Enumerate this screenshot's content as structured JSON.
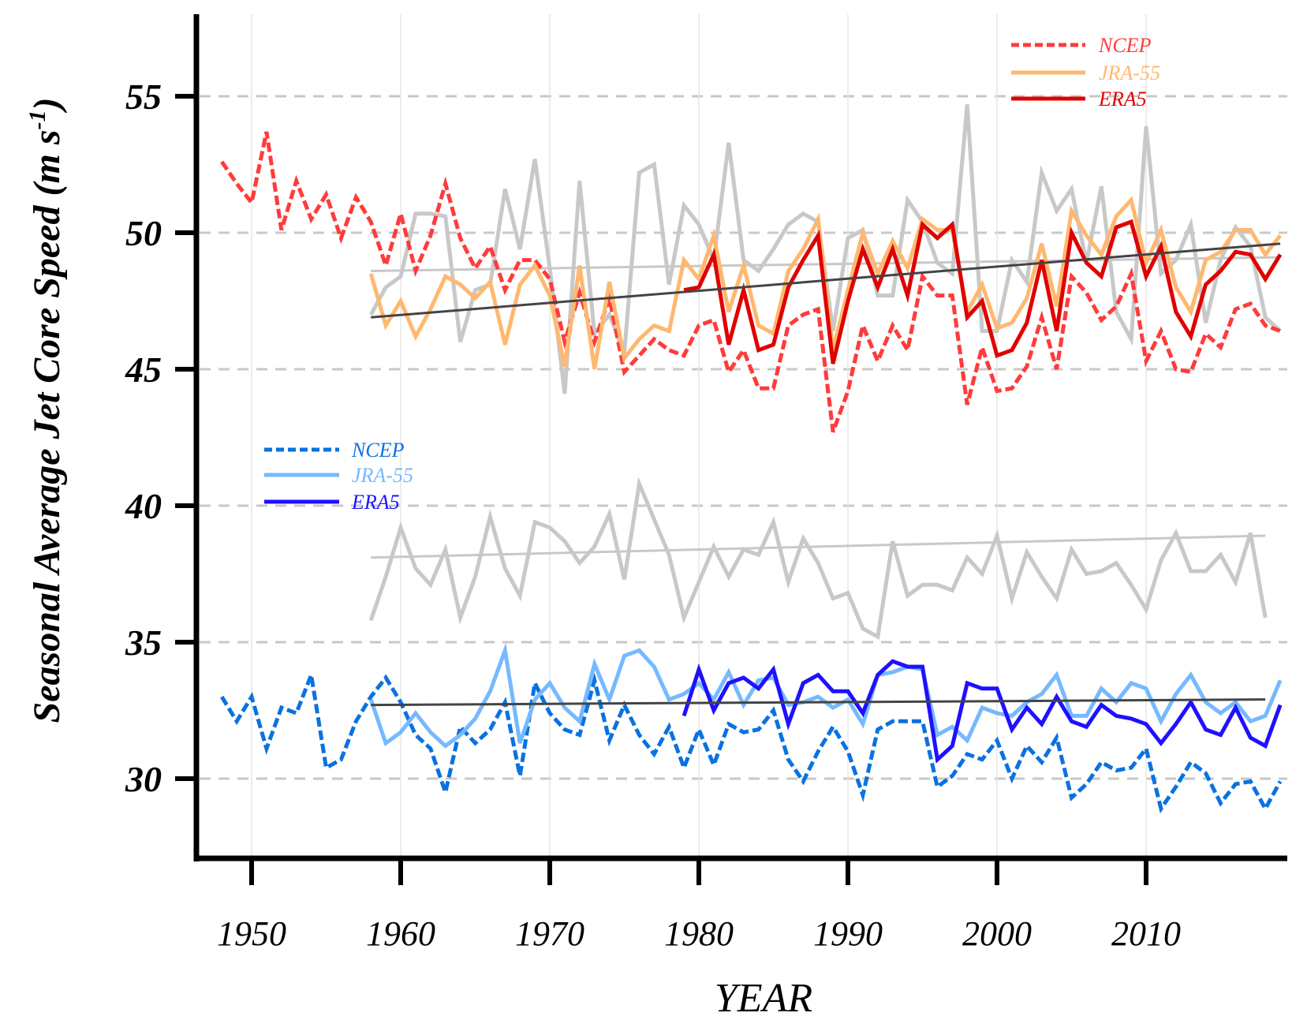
{
  "chart_data": {
    "type": "line",
    "title": "",
    "xlabel": "YEAR",
    "ylabel": "Seasonal Average Jet Core Speed (m s",
    "ylabel_superscript": "-1",
    "ylabel_close": ")",
    "xlim": [
      1946.3,
      2019.6
    ],
    "ylim": [
      27,
      58
    ],
    "x_ticks": [
      1950,
      1960,
      1970,
      1980,
      1990,
      2000,
      2010
    ],
    "x_tick_labels": [
      "1950",
      "1960",
      "1970",
      "1980",
      "1990",
      "2000",
      "2010"
    ],
    "y_ticks": [
      30,
      35,
      40,
      45,
      50,
      55
    ],
    "y_tick_labels": [
      "30",
      "35",
      "40",
      "45",
      "50",
      "55"
    ],
    "grid": "horizontal dashed at y ticks, faint vertical at x ticks",
    "legends": [
      {
        "placement": "top-right",
        "entries": [
          {
            "label": "NCEP",
            "color": "#ff3b3b",
            "style": "dashed"
          },
          {
            "label": "JRA-55",
            "color": "#ffb870",
            "style": "solid"
          },
          {
            "label": "ERA5",
            "color": "#e00000",
            "style": "solid"
          }
        ]
      },
      {
        "placement": "middle-left",
        "entries": [
          {
            "label": "NCEP",
            "color": "#0a72e0",
            "style": "dashed"
          },
          {
            "label": "JRA-55",
            "color": "#76b9ff",
            "style": "solid"
          },
          {
            "label": "ERA5",
            "color": "#1f10ff",
            "style": "solid"
          }
        ]
      }
    ],
    "series": [
      {
        "name": "Upper ensemble (grey)",
        "group": "upper",
        "color": "#c8c8c8",
        "style": "solid",
        "start_year": 1958,
        "values": [
          47.0,
          48.0,
          48.4,
          50.7,
          50.7,
          50.6,
          46.0,
          47.9,
          48.1,
          51.6,
          49.4,
          52.7,
          48.7,
          44.1,
          51.9,
          46.3,
          47.0,
          45.6,
          52.2,
          52.5,
          48.1,
          51.0,
          50.3,
          49.0,
          53.3,
          49.0,
          48.6,
          49.4,
          50.3,
          50.7,
          50.4,
          46.4,
          49.8,
          50.1,
          47.7,
          47.7,
          51.2,
          50.4,
          48.9,
          48.5,
          54.7,
          46.4,
          46.4,
          49.0,
          48.2,
          52.2,
          50.8,
          51.6,
          48.9,
          51.7,
          47.1,
          46.1,
          53.9,
          48.5,
          49.0,
          50.3,
          46.7,
          49.0,
          50.2,
          49.5,
          46.9,
          46.4
        ]
      },
      {
        "name": "Upper NCEP",
        "group": "upper",
        "color": "#ff3b3b",
        "style": "dashed",
        "start_year": 1948,
        "values": [
          52.6,
          51.8,
          51.1,
          53.7,
          50.1,
          51.9,
          50.5,
          51.4,
          49.8,
          51.3,
          50.4,
          48.8,
          50.7,
          48.6,
          49.9,
          51.8,
          49.8,
          48.7,
          49.5,
          47.9,
          49.0,
          49.0,
          48.3,
          46.0,
          47.8,
          46.0,
          47.6,
          44.9,
          45.5,
          46.1,
          45.7,
          45.5,
          46.6,
          46.8,
          44.9,
          45.7,
          44.3,
          44.3,
          46.6,
          47.0,
          47.2,
          42.7,
          44.2,
          46.6,
          45.3,
          46.6,
          45.7,
          48.4,
          47.7,
          47.7,
          43.7,
          45.8,
          44.2,
          44.3,
          45.1,
          46.9,
          45.0,
          48.4,
          47.8,
          46.8,
          47.3,
          48.5,
          45.3,
          46.4,
          45.0,
          44.9,
          46.3,
          45.8,
          47.2,
          47.4,
          46.6,
          46.4
        ]
      },
      {
        "name": "Upper JRA-55",
        "group": "upper",
        "color": "#ffb870",
        "style": "solid",
        "start_year": 1958,
        "values": [
          48.5,
          46.6,
          47.5,
          46.2,
          47.2,
          48.4,
          48.1,
          47.6,
          48.2,
          45.9,
          48.1,
          48.8,
          47.7,
          45.1,
          48.8,
          45.0,
          48.2,
          45.4,
          46.1,
          46.6,
          46.4,
          49.0,
          48.3,
          49.9,
          47.1,
          48.8,
          46.6,
          46.3,
          48.6,
          49.4,
          50.5,
          45.7,
          47.9,
          50.0,
          48.5,
          49.7,
          48.7,
          50.5,
          50.1,
          50.1,
          47.1,
          48.1,
          46.5,
          46.7,
          47.6,
          49.6,
          47.3,
          50.8,
          49.9,
          49.2,
          50.6,
          51.2,
          48.9,
          50.1,
          48.0,
          47.1,
          49.0,
          49.3,
          50.1,
          50.1,
          49.2,
          49.9
        ]
      },
      {
        "name": "Upper ERA5",
        "group": "upper",
        "color": "#e00000",
        "style": "solid",
        "start_year": 1979,
        "values": [
          47.9,
          48.0,
          49.2,
          45.9,
          47.9,
          45.7,
          45.9,
          48.0,
          49.0,
          49.9,
          45.2,
          47.5,
          49.4,
          48.0,
          49.4,
          47.7,
          50.3,
          49.8,
          50.3,
          46.9,
          47.5,
          45.5,
          45.7,
          46.7,
          49.0,
          46.4,
          50.0,
          48.9,
          48.4,
          50.2,
          50.4,
          48.4,
          49.5,
          47.1,
          46.2,
          48.1,
          48.6,
          49.3,
          49.2,
          48.3,
          49.2
        ]
      },
      {
        "name": "Middle ensemble (grey)",
        "group": "middle",
        "color": "#c8c8c8",
        "style": "solid",
        "start_year": 1958,
        "values": [
          35.8,
          37.4,
          39.2,
          37.7,
          37.1,
          38.4,
          35.9,
          37.4,
          39.6,
          37.7,
          36.7,
          39.4,
          39.2,
          38.7,
          37.9,
          38.5,
          39.7,
          37.3,
          40.8,
          39.5,
          38.2,
          35.9,
          37.2,
          38.5,
          37.4,
          38.4,
          38.2,
          39.4,
          37.2,
          38.8,
          37.9,
          36.6,
          36.8,
          35.5,
          35.2,
          38.7,
          36.7,
          37.1,
          37.1,
          36.9,
          38.1,
          37.5,
          38.9,
          36.6,
          38.3,
          37.4,
          36.6,
          38.4,
          37.5,
          37.6,
          37.9,
          37.1,
          36.2,
          38.0,
          39.0,
          37.6,
          37.6,
          38.2,
          37.2,
          39.0,
          35.9
        ]
      },
      {
        "name": "Lower NCEP",
        "group": "lower",
        "color": "#0a72e0",
        "style": "dashed",
        "start_year": 1948,
        "values": [
          33.0,
          32.1,
          33.0,
          31.1,
          32.6,
          32.4,
          33.8,
          30.4,
          30.7,
          32.1,
          33.0,
          33.7,
          32.8,
          31.6,
          31.1,
          29.5,
          31.9,
          31.3,
          31.8,
          32.8,
          30.1,
          33.5,
          32.4,
          31.8,
          31.6,
          33.6,
          31.4,
          32.7,
          31.6,
          30.9,
          31.9,
          30.4,
          31.8,
          30.5,
          32.0,
          31.7,
          31.8,
          32.5,
          30.7,
          29.9,
          31.0,
          31.9,
          31.0,
          29.4,
          31.8,
          32.1,
          32.1,
          32.1,
          29.7,
          30.1,
          30.9,
          30.7,
          31.4,
          30.0,
          31.2,
          30.6,
          31.5,
          29.3,
          29.8,
          30.6,
          30.3,
          30.4,
          31.1,
          28.9,
          29.7,
          30.6,
          30.2,
          29.1,
          29.8,
          29.9,
          28.9,
          29.9
        ]
      },
      {
        "name": "Lower JRA-55",
        "group": "lower",
        "color": "#76b9ff",
        "style": "solid",
        "start_year": 1958,
        "values": [
          32.9,
          31.3,
          31.7,
          32.4,
          31.7,
          31.2,
          31.6,
          32.2,
          33.2,
          34.7,
          31.3,
          32.9,
          33.5,
          32.6,
          32.1,
          34.2,
          32.9,
          34.5,
          34.7,
          34.1,
          32.9,
          33.1,
          33.5,
          32.9,
          33.9,
          32.7,
          33.6,
          33.7,
          32.7,
          32.8,
          33.0,
          32.6,
          32.9,
          32.0,
          33.8,
          33.9,
          34.1,
          34.0,
          31.6,
          31.9,
          31.4,
          32.6,
          32.4,
          32.3,
          32.8,
          33.1,
          33.8,
          32.3,
          32.3,
          33.3,
          32.8,
          33.5,
          33.3,
          32.1,
          33.1,
          33.8,
          32.8,
          32.4,
          32.8,
          32.1,
          32.3,
          33.6
        ]
      },
      {
        "name": "Lower ERA5",
        "group": "lower",
        "color": "#1f10ff",
        "style": "solid",
        "start_year": 1979,
        "values": [
          32.3,
          34.0,
          32.5,
          33.5,
          33.7,
          33.3,
          34.0,
          32.0,
          33.5,
          33.8,
          33.2,
          33.2,
          32.4,
          33.8,
          34.3,
          34.1,
          34.1,
          30.7,
          31.2,
          33.5,
          33.3,
          33.3,
          31.8,
          32.6,
          32.0,
          33.0,
          32.1,
          31.9,
          32.7,
          32.3,
          32.2,
          32.0,
          31.3,
          32.0,
          32.8,
          31.8,
          31.6,
          32.6,
          31.5,
          31.2,
          32.7
        ]
      }
    ],
    "trend_lines": [
      {
        "name": "Upper ensemble trend",
        "color": "#c8c8c8",
        "x": [
          1958,
          2019
        ],
        "y": [
          48.6,
          49.1
        ]
      },
      {
        "name": "Upper reanalysis trend",
        "color": "#444444",
        "x": [
          1958,
          2019
        ],
        "y": [
          46.9,
          49.6
        ]
      },
      {
        "name": "Middle ensemble trend",
        "color": "#c8c8c8",
        "x": [
          1958,
          2018
        ],
        "y": [
          38.1,
          38.9
        ]
      },
      {
        "name": "Lower reanalysis trend",
        "color": "#444444",
        "x": [
          1958,
          2018
        ],
        "y": [
          32.7,
          32.9
        ]
      }
    ]
  }
}
